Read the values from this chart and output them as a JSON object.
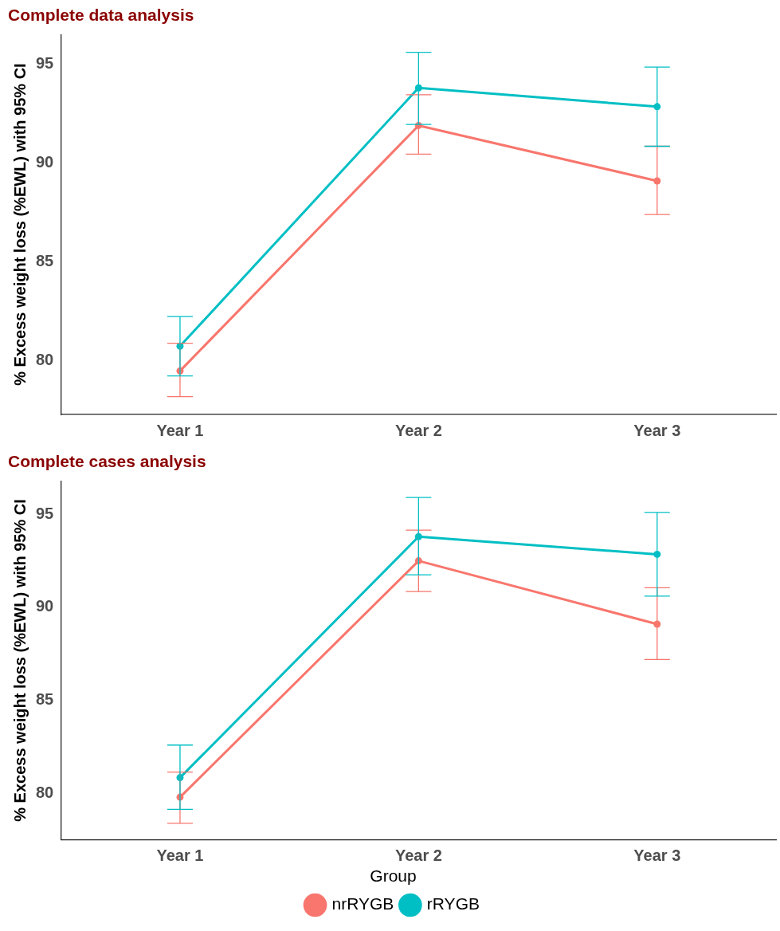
{
  "chart_data": [
    {
      "type": "line",
      "title": "Complete data analysis",
      "ylabel": "% Excess weight loss (%EWL) with 95% CI",
      "categories": [
        "Year 1",
        "Year 2",
        "Year 3"
      ],
      "ylim": [
        77.3,
        96.5
      ],
      "yticks": [
        80,
        85,
        90,
        95
      ],
      "grid": false,
      "legend": false,
      "marker": "circle",
      "line_style": "solid",
      "series": [
        {
          "color": "#f8766d",
          "values": [
            79.5,
            91.9,
            89.1
          ],
          "errors": [
            [
              78.2,
              80.9
            ],
            [
              90.45,
              93.45
            ],
            [
              87.4,
              90.85
            ]
          ]
        },
        {
          "color": "#00bfc4",
          "values": [
            80.75,
            93.8,
            92.85
          ],
          "errors": [
            [
              79.25,
              82.25
            ],
            [
              91.95,
              95.6
            ],
            [
              90.85,
              94.85
            ]
          ]
        }
      ]
    },
    {
      "type": "line",
      "title": "Complete cases analysis",
      "ylabel": "% Excess weight loss (%EWL) with 95% CI",
      "legend_title": "Group",
      "categories": [
        "Year 1",
        "Year 2",
        "Year 3"
      ],
      "ylim": [
        77.5,
        96.8
      ],
      "yticks": [
        80,
        85,
        90,
        95
      ],
      "grid": false,
      "legend": "bottom",
      "marker": "circle",
      "line_style": "solid",
      "series": [
        {
          "name": "nrRYGB",
          "color": "#f8766d",
          "values": [
            79.8,
            92.5,
            89.1
          ],
          "errors": [
            [
              78.4,
              81.15
            ],
            [
              90.85,
              94.15
            ],
            [
              87.2,
              91.05
            ]
          ]
        },
        {
          "name": "rRYGB",
          "color": "#00bfc4",
          "values": [
            80.85,
            93.8,
            92.85
          ],
          "errors": [
            [
              79.15,
              82.6
            ],
            [
              91.75,
              95.9
            ],
            [
              90.6,
              95.1
            ]
          ]
        }
      ]
    }
  ]
}
